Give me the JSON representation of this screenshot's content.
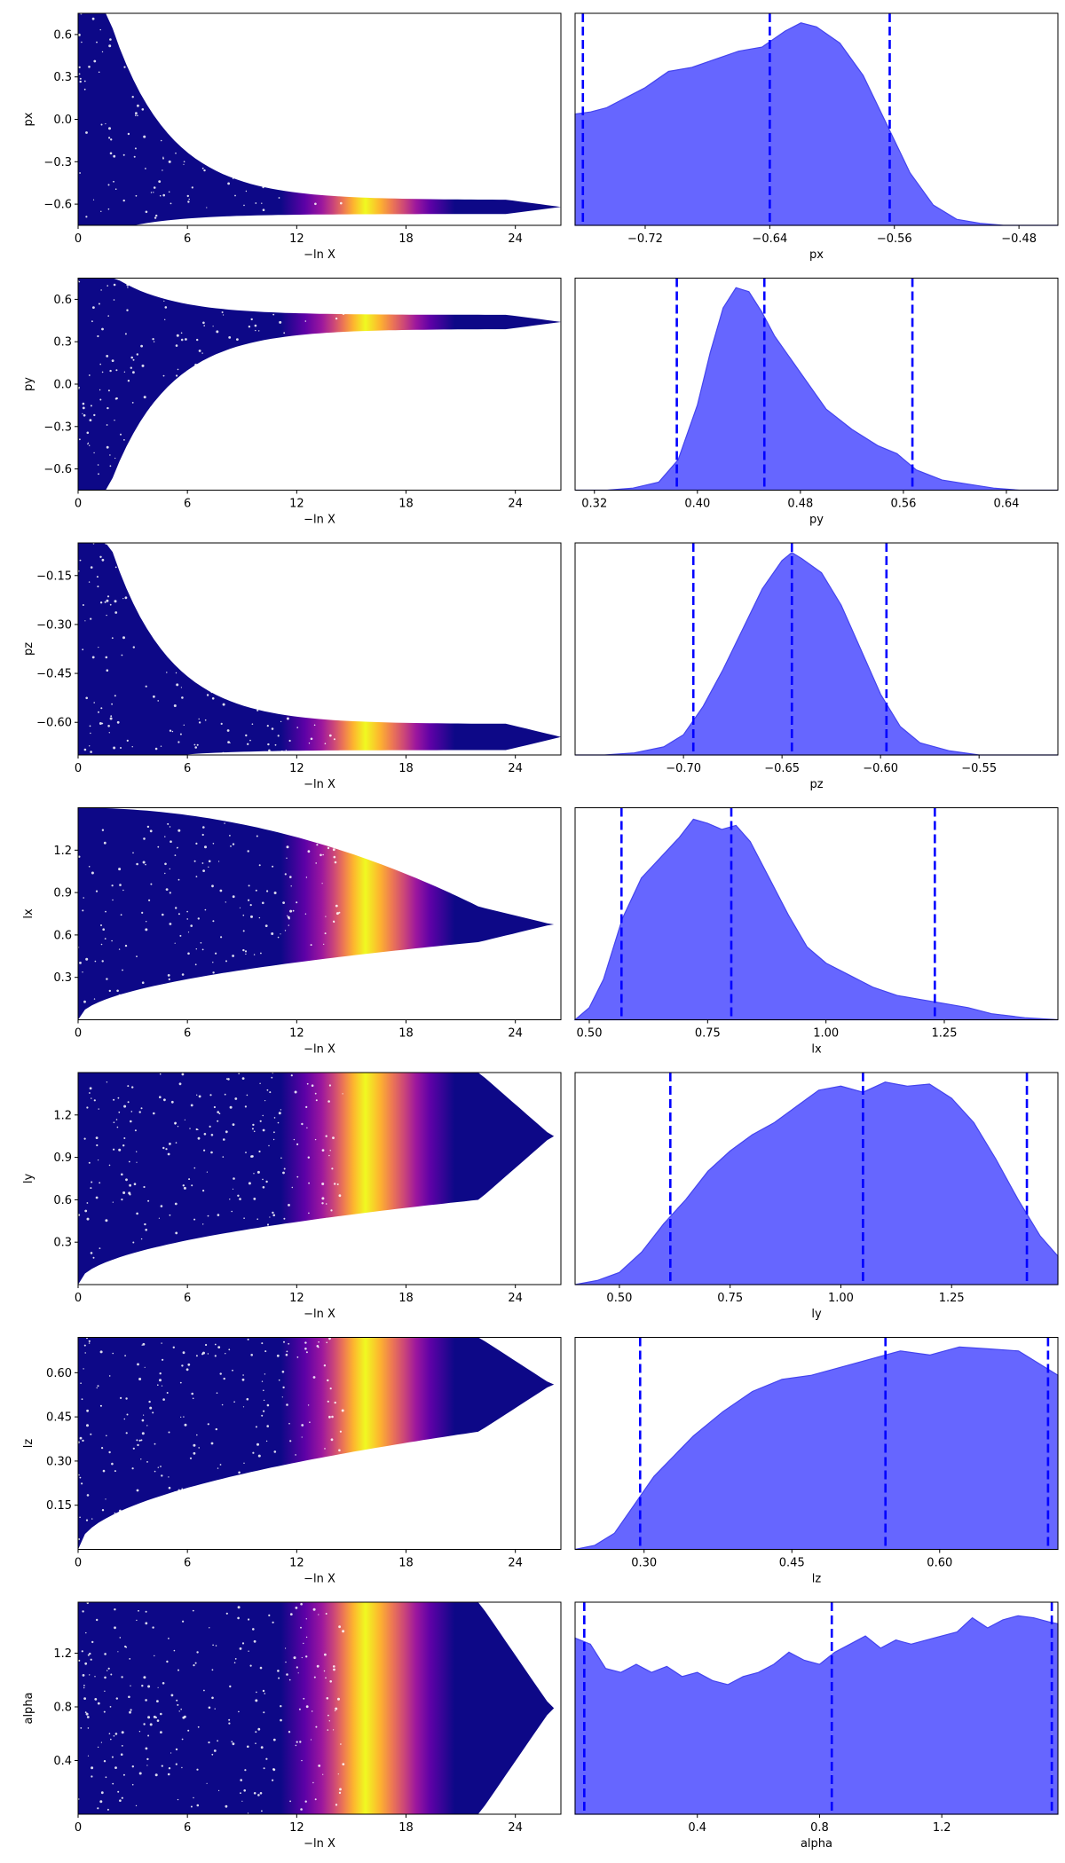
{
  "chart_data": {
    "type": "trace-plot",
    "description_rows": 7,
    "colormap_colors": [
      "#0d0887",
      "#5d01a6",
      "#9c179e",
      "#cc4778",
      "#ed7953",
      "#fdb42f",
      "#f0f921"
    ],
    "posterior_fill_color": "#6666ff",
    "posterior_edge_color": "#4444ee",
    "quantile_line_color": "#0000ff",
    "lnx_ticks": [
      0,
      6,
      12,
      18,
      24
    ],
    "lnx_range": [
      0,
      26.5
    ],
    "lnx_label": "−ln X",
    "rows": [
      {
        "name": "px",
        "y_ticks": [
          "0.6",
          "0.3",
          "0.0",
          "−0.3",
          "−0.6"
        ],
        "y_tick_values": [
          0.6,
          0.3,
          0.0,
          -0.3,
          -0.6
        ],
        "y_range": [
          -0.75,
          0.75
        ],
        "trace": {
          "shape": "converge",
          "converge_value": -0.62,
          "spread_end": 0.05
        },
        "posterior": {
          "x_ticks": [
            "−0.72",
            "−0.64",
            "−0.56",
            "−0.48"
          ],
          "x_tick_values": [
            -0.72,
            -0.64,
            -0.56,
            -0.48
          ],
          "x_range": [
            -0.765,
            -0.455
          ],
          "density": [
            [
              -0.765,
              0.55
            ],
            [
              -0.755,
              0.56
            ],
            [
              -0.745,
              0.58
            ],
            [
              -0.735,
              0.62
            ],
            [
              -0.72,
              0.68
            ],
            [
              -0.705,
              0.76
            ],
            [
              -0.69,
              0.78
            ],
            [
              -0.675,
              0.82
            ],
            [
              -0.66,
              0.86
            ],
            [
              -0.645,
              0.88
            ],
            [
              -0.63,
              0.96
            ],
            [
              -0.62,
              1.0
            ],
            [
              -0.61,
              0.98
            ],
            [
              -0.595,
              0.9
            ],
            [
              -0.58,
              0.74
            ],
            [
              -0.565,
              0.5
            ],
            [
              -0.55,
              0.26
            ],
            [
              -0.535,
              0.1
            ],
            [
              -0.52,
              0.03
            ],
            [
              -0.505,
              0.01
            ],
            [
              -0.49,
              0.0
            ],
            [
              -0.455,
              0.0
            ]
          ],
          "quantiles": [
            -0.76,
            -0.64,
            -0.563
          ]
        }
      },
      {
        "name": "py",
        "y_ticks": [
          "0.6",
          "0.3",
          "0.0",
          "−0.3",
          "−0.6"
        ],
        "y_tick_values": [
          0.6,
          0.3,
          0.0,
          -0.3,
          -0.6
        ],
        "y_range": [
          -0.75,
          0.75
        ],
        "trace": {
          "shape": "converge",
          "converge_value": 0.44,
          "spread_end": 0.05
        },
        "posterior": {
          "x_ticks": [
            "0.32",
            "0.40",
            "0.48",
            "0.56",
            "0.64"
          ],
          "x_tick_values": [
            0.32,
            0.4,
            0.48,
            0.56,
            0.64
          ],
          "x_range": [
            0.305,
            0.68
          ],
          "density": [
            [
              0.305,
              0.0
            ],
            [
              0.33,
              0.0
            ],
            [
              0.35,
              0.01
            ],
            [
              0.37,
              0.04
            ],
            [
              0.385,
              0.15
            ],
            [
              0.4,
              0.42
            ],
            [
              0.41,
              0.68
            ],
            [
              0.42,
              0.9
            ],
            [
              0.43,
              1.0
            ],
            [
              0.44,
              0.98
            ],
            [
              0.45,
              0.88
            ],
            [
              0.46,
              0.76
            ],
            [
              0.48,
              0.58
            ],
            [
              0.5,
              0.4
            ],
            [
              0.52,
              0.3
            ],
            [
              0.54,
              0.22
            ],
            [
              0.555,
              0.18
            ],
            [
              0.57,
              0.1
            ],
            [
              0.59,
              0.05
            ],
            [
              0.61,
              0.03
            ],
            [
              0.63,
              0.01
            ],
            [
              0.65,
              0.0
            ],
            [
              0.68,
              0.0
            ]
          ],
          "quantiles": [
            0.384,
            0.452,
            0.567
          ]
        }
      },
      {
        "name": "pz",
        "y_ticks": [
          "−0.15",
          "−0.30",
          "−0.45",
          "−0.60"
        ],
        "y_tick_values": [
          -0.15,
          -0.3,
          -0.45,
          -0.6
        ],
        "y_range": [
          -0.7,
          -0.05
        ],
        "trace": {
          "shape": "converge",
          "converge_value": -0.645,
          "spread_end": 0.04
        },
        "posterior": {
          "x_ticks": [
            "−0.70",
            "−0.65",
            "−0.60",
            "−0.55"
          ],
          "x_tick_values": [
            -0.7,
            -0.65,
            -0.6,
            -0.55
          ],
          "x_range": [
            -0.755,
            -0.51
          ],
          "density": [
            [
              -0.755,
              0.0
            ],
            [
              -0.74,
              0.0
            ],
            [
              -0.725,
              0.01
            ],
            [
              -0.71,
              0.04
            ],
            [
              -0.7,
              0.1
            ],
            [
              -0.69,
              0.24
            ],
            [
              -0.68,
              0.42
            ],
            [
              -0.67,
              0.62
            ],
            [
              -0.66,
              0.82
            ],
            [
              -0.65,
              0.96
            ],
            [
              -0.645,
              1.0
            ],
            [
              -0.64,
              0.97
            ],
            [
              -0.63,
              0.9
            ],
            [
              -0.62,
              0.74
            ],
            [
              -0.61,
              0.52
            ],
            [
              -0.6,
              0.3
            ],
            [
              -0.59,
              0.14
            ],
            [
              -0.58,
              0.06
            ],
            [
              -0.565,
              0.02
            ],
            [
              -0.55,
              0.0
            ],
            [
              -0.51,
              0.0
            ]
          ],
          "quantiles": [
            -0.695,
            -0.645,
            -0.597
          ]
        }
      },
      {
        "name": "lx",
        "y_ticks": [
          "1.2",
          "0.9",
          "0.6",
          "0.3"
        ],
        "y_tick_values": [
          1.2,
          0.9,
          0.6,
          0.3
        ],
        "y_range": [
          0.0,
          1.5
        ],
        "trace": {
          "shape": "band",
          "low_start": 0.0,
          "high_start": 1.5,
          "low_end": 0.55,
          "high_end": 0.8
        },
        "posterior": {
          "x_ticks": [
            "0.50",
            "0.75",
            "1.00",
            "1.25"
          ],
          "x_tick_values": [
            0.5,
            0.75,
            1.0,
            1.25
          ],
          "x_range": [
            0.47,
            1.49
          ],
          "density": [
            [
              0.47,
              0.0
            ],
            [
              0.5,
              0.06
            ],
            [
              0.53,
              0.2
            ],
            [
              0.57,
              0.5
            ],
            [
              0.61,
              0.7
            ],
            [
              0.65,
              0.8
            ],
            [
              0.69,
              0.9
            ],
            [
              0.72,
              0.99
            ],
            [
              0.75,
              0.97
            ],
            [
              0.78,
              0.94
            ],
            [
              0.81,
              0.96
            ],
            [
              0.84,
              0.88
            ],
            [
              0.88,
              0.7
            ],
            [
              0.92,
              0.52
            ],
            [
              0.96,
              0.36
            ],
            [
              1.0,
              0.28
            ],
            [
              1.05,
              0.22
            ],
            [
              1.1,
              0.16
            ],
            [
              1.15,
              0.12
            ],
            [
              1.2,
              0.1
            ],
            [
              1.25,
              0.08
            ],
            [
              1.3,
              0.06
            ],
            [
              1.35,
              0.03
            ],
            [
              1.42,
              0.01
            ],
            [
              1.49,
              0.0
            ]
          ],
          "quantiles": [
            0.568,
            0.8,
            1.23
          ]
        }
      },
      {
        "name": "ly",
        "y_ticks": [
          "1.2",
          "0.9",
          "0.6",
          "0.3"
        ],
        "y_tick_values": [
          1.2,
          0.9,
          0.6,
          0.3
        ],
        "y_range": [
          0.0,
          1.5
        ],
        "trace": {
          "shape": "band",
          "low_start": 0.0,
          "high_start": 1.5,
          "low_end": 0.6,
          "high_end": 1.5
        },
        "posterior": {
          "x_ticks": [
            "0.50",
            "0.75",
            "1.00",
            "1.25"
          ],
          "x_tick_values": [
            0.5,
            0.75,
            1.0,
            1.25
          ],
          "x_range": [
            0.4,
            1.49
          ],
          "density": [
            [
              0.4,
              0.0
            ],
            [
              0.45,
              0.02
            ],
            [
              0.5,
              0.06
            ],
            [
              0.55,
              0.16
            ],
            [
              0.6,
              0.3
            ],
            [
              0.65,
              0.42
            ],
            [
              0.7,
              0.56
            ],
            [
              0.75,
              0.66
            ],
            [
              0.8,
              0.74
            ],
            [
              0.85,
              0.8
            ],
            [
              0.9,
              0.88
            ],
            [
              0.95,
              0.96
            ],
            [
              1.0,
              0.98
            ],
            [
              1.05,
              0.95
            ],
            [
              1.1,
              1.0
            ],
            [
              1.15,
              0.98
            ],
            [
              1.2,
              0.99
            ],
            [
              1.25,
              0.92
            ],
            [
              1.3,
              0.8
            ],
            [
              1.35,
              0.62
            ],
            [
              1.4,
              0.42
            ],
            [
              1.45,
              0.24
            ],
            [
              1.49,
              0.14
            ]
          ],
          "quantiles": [
            0.615,
            1.05,
            1.42
          ]
        }
      },
      {
        "name": "lz",
        "y_ticks": [
          "0.60",
          "0.45",
          "0.30",
          "0.15"
        ],
        "y_tick_values": [
          0.6,
          0.45,
          0.3,
          0.15
        ],
        "y_range": [
          0.0,
          0.72
        ],
        "trace": {
          "shape": "band",
          "low_start": 0.0,
          "high_start": 0.72,
          "low_end": 0.4,
          "high_end": 0.72
        },
        "posterior": {
          "x_ticks": [
            "0.30",
            "0.45",
            "0.60"
          ],
          "x_tick_values": [
            0.3,
            0.45,
            0.6
          ],
          "x_range": [
            0.23,
            0.72
          ],
          "density": [
            [
              0.23,
              0.0
            ],
            [
              0.25,
              0.02
            ],
            [
              0.27,
              0.08
            ],
            [
              0.29,
              0.22
            ],
            [
              0.31,
              0.36
            ],
            [
              0.33,
              0.46
            ],
            [
              0.35,
              0.56
            ],
            [
              0.38,
              0.68
            ],
            [
              0.41,
              0.78
            ],
            [
              0.44,
              0.84
            ],
            [
              0.47,
              0.86
            ],
            [
              0.5,
              0.9
            ],
            [
              0.53,
              0.94
            ],
            [
              0.56,
              0.98
            ],
            [
              0.59,
              0.96
            ],
            [
              0.62,
              1.0
            ],
            [
              0.65,
              0.99
            ],
            [
              0.68,
              0.98
            ],
            [
              0.7,
              0.92
            ],
            [
              0.72,
              0.86
            ]
          ],
          "quantiles": [
            0.296,
            0.545,
            0.71
          ]
        }
      },
      {
        "name": "alpha",
        "y_ticks": [
          "1.2",
          "0.8",
          "0.4"
        ],
        "y_tick_values": [
          1.2,
          0.8,
          0.4
        ],
        "y_range": [
          0.0,
          1.58
        ],
        "trace": {
          "shape": "band",
          "low_start": 0.0,
          "high_start": 1.58,
          "low_end": 0.0,
          "high_end": 1.58
        },
        "posterior": {
          "x_ticks": [
            "0.4",
            "0.8",
            "1.2"
          ],
          "x_tick_values": [
            0.4,
            0.8,
            1.2
          ],
          "x_range": [
            0.0,
            1.58
          ],
          "density": [
            [
              0.0,
              0.87
            ],
            [
              0.05,
              0.84
            ],
            [
              0.1,
              0.72
            ],
            [
              0.15,
              0.7
            ],
            [
              0.2,
              0.74
            ],
            [
              0.25,
              0.7
            ],
            [
              0.3,
              0.73
            ],
            [
              0.35,
              0.68
            ],
            [
              0.4,
              0.7
            ],
            [
              0.45,
              0.66
            ],
            [
              0.5,
              0.64
            ],
            [
              0.55,
              0.68
            ],
            [
              0.6,
              0.7
            ],
            [
              0.65,
              0.74
            ],
            [
              0.7,
              0.8
            ],
            [
              0.75,
              0.76
            ],
            [
              0.8,
              0.74
            ],
            [
              0.85,
              0.8
            ],
            [
              0.9,
              0.84
            ],
            [
              0.95,
              0.88
            ],
            [
              1.0,
              0.82
            ],
            [
              1.05,
              0.86
            ],
            [
              1.1,
              0.84
            ],
            [
              1.15,
              0.86
            ],
            [
              1.2,
              0.88
            ],
            [
              1.25,
              0.9
            ],
            [
              1.3,
              0.97
            ],
            [
              1.35,
              0.92
            ],
            [
              1.4,
              0.96
            ],
            [
              1.45,
              0.98
            ],
            [
              1.5,
              0.97
            ],
            [
              1.55,
              0.95
            ],
            [
              1.58,
              0.94
            ]
          ],
          "quantiles": [
            0.03,
            0.84,
            1.56
          ]
        }
      }
    ]
  }
}
